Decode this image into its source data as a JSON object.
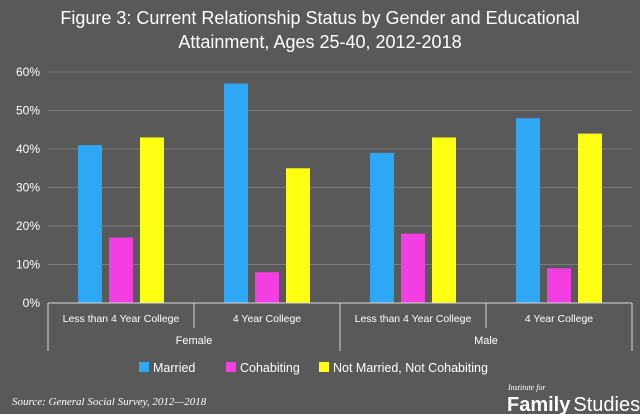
{
  "chart_data": {
    "type": "bar",
    "title_lines": [
      "Figure 3: Current Relationship Status by Gender and Educational",
      "Attainment, Ages 25-40, 2012-2018"
    ],
    "groups": [
      {
        "label": "Female",
        "categories": [
          "Less than 4 Year College",
          "4 Year College"
        ]
      },
      {
        "label": "Male",
        "categories": [
          "Less than 4 Year College",
          "4 Year College"
        ]
      }
    ],
    "categories": [
      "Less than 4 Year College",
      "4 Year College",
      "Less than 4 Year College",
      "4 Year College"
    ],
    "series": [
      {
        "name": "Married",
        "color": "#2ea8f5",
        "values": [
          41,
          57,
          39,
          48
        ]
      },
      {
        "name": "Cohabiting",
        "color": "#f33ee2",
        "values": [
          17,
          8,
          18,
          9
        ]
      },
      {
        "name": "Not Married, Not Cohabiting",
        "color": "#ffff14",
        "values": [
          43,
          35,
          43,
          44
        ]
      }
    ],
    "ylim": [
      0,
      60
    ],
    "yticks": [
      0,
      10,
      20,
      30,
      40,
      50,
      60
    ],
    "ytick_labels": [
      "0%",
      "10%",
      "20%",
      "30%",
      "40%",
      "50%",
      "60%"
    ],
    "grid": true,
    "legend_position": "bottom"
  },
  "source": "Source: General Social Survey, 2012—2018",
  "logo": {
    "small": "Institute for",
    "big_bold": "Family",
    "big": "Studies"
  }
}
